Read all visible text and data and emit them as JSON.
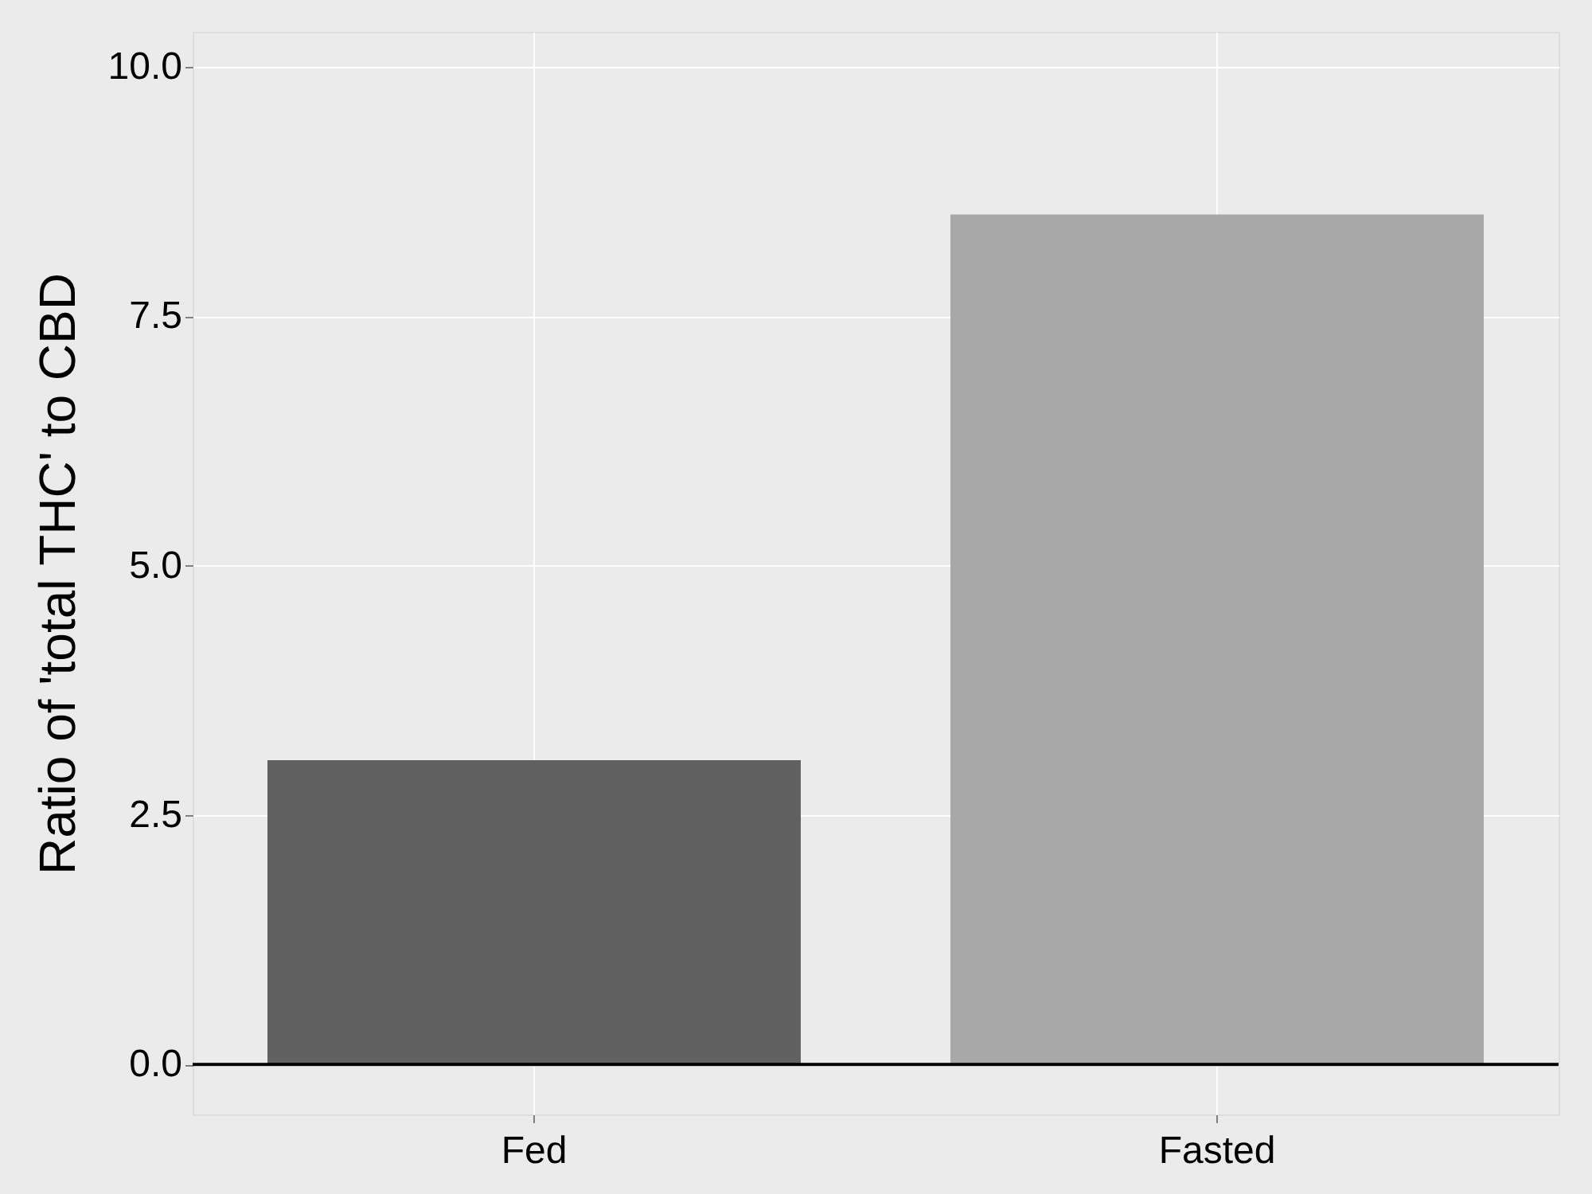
{
  "chart_data": {
    "type": "bar",
    "ylabel": "Ratio of 'total THC' to CBD",
    "categories": [
      "Fed",
      "Fasted"
    ],
    "values": [
      3.05,
      8.52
    ],
    "colors": [
      "#616161",
      "#a8a8a8"
    ],
    "ylim": [
      -0.5,
      10.35
    ],
    "yticks": [
      {
        "value": 0,
        "label": "0.0"
      },
      {
        "value": 2.5,
        "label": "2.5"
      },
      {
        "value": 5,
        "label": "5.0"
      },
      {
        "value": 7.5,
        "label": "7.5"
      },
      {
        "value": 10,
        "label": "10.0"
      }
    ],
    "grid": true,
    "ref_lines": [
      {
        "axis": "y",
        "value": 0,
        "color": "#000000"
      }
    ]
  }
}
